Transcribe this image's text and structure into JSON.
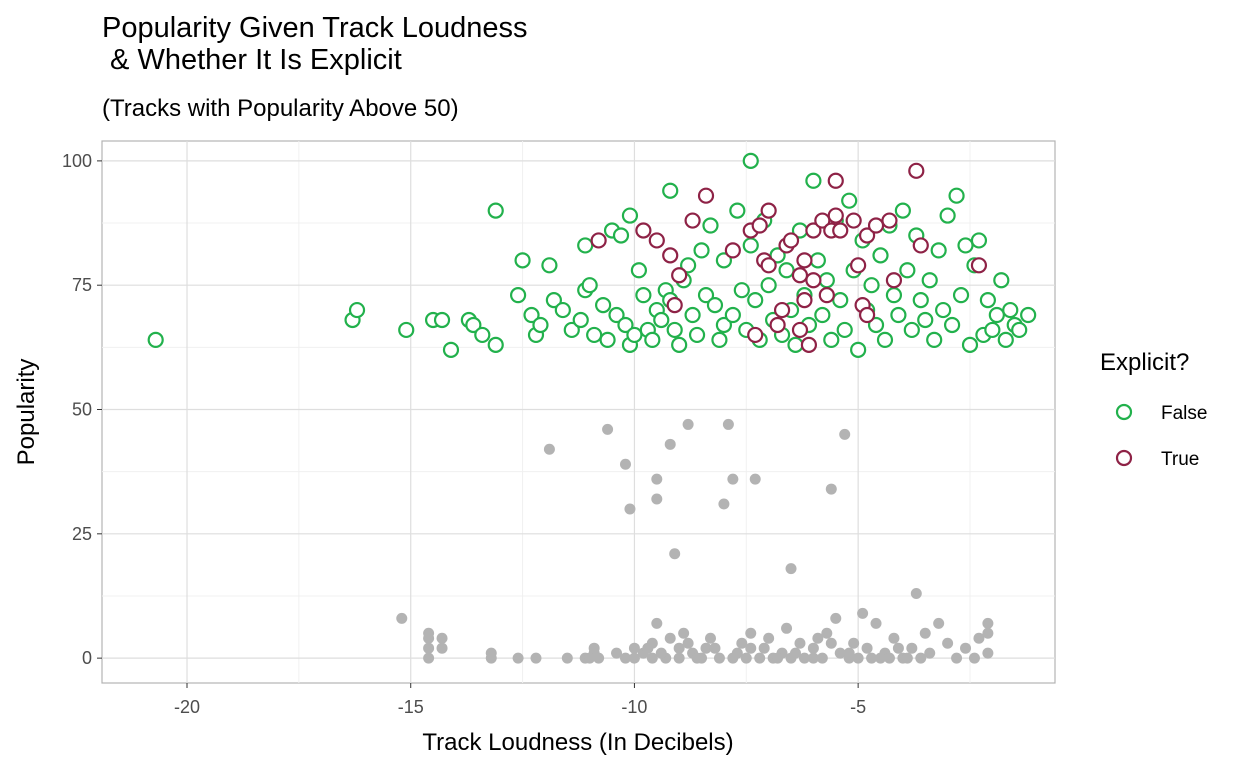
{
  "chart_data": {
    "type": "scatter",
    "title": "Popularity Given Track Loudness\n & Whether It Is Explicit",
    "subtitle": "(Tracks with Popularity Above 50)",
    "xlabel": "Track Loudness (In Decibels)",
    "ylabel": "Popularity",
    "xlim": [
      -21.9,
      -0.6
    ],
    "ylim": [
      -5,
      104
    ],
    "x_ticks": [
      -20,
      -15,
      -10,
      -5
    ],
    "y_ticks": [
      0,
      25,
      50,
      75,
      100
    ],
    "grid": true,
    "legend": {
      "title": "Explicit?",
      "position": "right",
      "entries": [
        {
          "label": "False",
          "color": "#22B14C"
        },
        {
          "label": "True",
          "color": "#8E2246"
        }
      ]
    },
    "series": [
      {
        "name": "False",
        "color": "#22B14C",
        "style": "hollow",
        "points": [
          [
            -20.7,
            64
          ],
          [
            -16.3,
            68
          ],
          [
            -16.2,
            70
          ],
          [
            -15.1,
            66
          ],
          [
            -14.5,
            68
          ],
          [
            -14.3,
            68
          ],
          [
            -14.1,
            62
          ],
          [
            -13.7,
            68
          ],
          [
            -13.6,
            67
          ],
          [
            -13.4,
            65
          ],
          [
            -13.1,
            63
          ],
          [
            -13.1,
            90
          ],
          [
            -12.6,
            73
          ],
          [
            -12.5,
            80
          ],
          [
            -12.3,
            69
          ],
          [
            -12.2,
            65
          ],
          [
            -12.1,
            67
          ],
          [
            -11.9,
            79
          ],
          [
            -11.8,
            72
          ],
          [
            -11.6,
            70
          ],
          [
            -11.4,
            66
          ],
          [
            -11.2,
            68
          ],
          [
            -11.1,
            74
          ],
          [
            -11.0,
            75
          ],
          [
            -11.1,
            83
          ],
          [
            -10.9,
            65
          ],
          [
            -10.7,
            71
          ],
          [
            -10.6,
            64
          ],
          [
            -10.5,
            86
          ],
          [
            -10.4,
            69
          ],
          [
            -10.3,
            85
          ],
          [
            -10.2,
            67
          ],
          [
            -10.1,
            63
          ],
          [
            -10.0,
            65
          ],
          [
            -10.1,
            89
          ],
          [
            -9.9,
            78
          ],
          [
            -9.8,
            73
          ],
          [
            -9.7,
            66
          ],
          [
            -9.6,
            64
          ],
          [
            -9.5,
            70
          ],
          [
            -9.4,
            68
          ],
          [
            -9.3,
            74
          ],
          [
            -9.2,
            72
          ],
          [
            -9.2,
            94
          ],
          [
            -9.1,
            66
          ],
          [
            -9.0,
            63
          ],
          [
            -8.9,
            76
          ],
          [
            -8.8,
            79
          ],
          [
            -8.7,
            69
          ],
          [
            -8.6,
            65
          ],
          [
            -8.5,
            82
          ],
          [
            -8.4,
            73
          ],
          [
            -8.3,
            87
          ],
          [
            -8.2,
            71
          ],
          [
            -8.1,
            64
          ],
          [
            -8.0,
            80
          ],
          [
            -8.0,
            67
          ],
          [
            -7.8,
            69
          ],
          [
            -7.7,
            90
          ],
          [
            -7.6,
            74
          ],
          [
            -7.5,
            66
          ],
          [
            -7.4,
            83
          ],
          [
            -7.4,
            100
          ],
          [
            -7.3,
            72
          ],
          [
            -7.2,
            64
          ],
          [
            -7.1,
            88
          ],
          [
            -7.0,
            75
          ],
          [
            -6.9,
            68
          ],
          [
            -6.8,
            81
          ],
          [
            -6.7,
            65
          ],
          [
            -6.6,
            78
          ],
          [
            -6.5,
            70
          ],
          [
            -6.4,
            63
          ],
          [
            -6.3,
            86
          ],
          [
            -6.2,
            73
          ],
          [
            -6.1,
            67
          ],
          [
            -6.0,
            96
          ],
          [
            -5.9,
            80
          ],
          [
            -5.8,
            69
          ],
          [
            -5.7,
            76
          ],
          [
            -5.6,
            64
          ],
          [
            -5.5,
            88
          ],
          [
            -5.4,
            72
          ],
          [
            -5.3,
            66
          ],
          [
            -5.2,
            92
          ],
          [
            -5.1,
            78
          ],
          [
            -5.0,
            62
          ],
          [
            -4.9,
            84
          ],
          [
            -4.8,
            70
          ],
          [
            -4.7,
            75
          ],
          [
            -4.6,
            67
          ],
          [
            -4.5,
            81
          ],
          [
            -4.4,
            64
          ],
          [
            -4.3,
            87
          ],
          [
            -4.2,
            73
          ],
          [
            -4.1,
            69
          ],
          [
            -4.0,
            90
          ],
          [
            -3.9,
            78
          ],
          [
            -3.8,
            66
          ],
          [
            -3.7,
            85
          ],
          [
            -3.6,
            72
          ],
          [
            -3.5,
            68
          ],
          [
            -3.4,
            76
          ],
          [
            -3.3,
            64
          ],
          [
            -3.2,
            82
          ],
          [
            -3.1,
            70
          ],
          [
            -3.0,
            89
          ],
          [
            -2.9,
            67
          ],
          [
            -2.8,
            93
          ],
          [
            -2.7,
            73
          ],
          [
            -2.6,
            83
          ],
          [
            -2.5,
            63
          ],
          [
            -2.4,
            79
          ],
          [
            -2.3,
            84
          ],
          [
            -2.2,
            65
          ],
          [
            -2.1,
            72
          ],
          [
            -2.0,
            66
          ],
          [
            -1.9,
            69
          ],
          [
            -1.8,
            76
          ],
          [
            -1.7,
            64
          ],
          [
            -1.6,
            70
          ],
          [
            -1.5,
            67
          ],
          [
            -1.2,
            69
          ],
          [
            -1.4,
            66
          ]
        ]
      },
      {
        "name": "True",
        "color": "#8E2246",
        "style": "hollow",
        "points": [
          [
            -10.8,
            84
          ],
          [
            -9.8,
            86
          ],
          [
            -9.5,
            84
          ],
          [
            -9.2,
            81
          ],
          [
            -9.0,
            77
          ],
          [
            -9.1,
            71
          ],
          [
            -8.7,
            88
          ],
          [
            -8.4,
            93
          ],
          [
            -7.8,
            82
          ],
          [
            -7.4,
            86
          ],
          [
            -7.3,
            65
          ],
          [
            -7.2,
            87
          ],
          [
            -7.1,
            80
          ],
          [
            -7.0,
            79
          ],
          [
            -7.0,
            90
          ],
          [
            -6.8,
            67
          ],
          [
            -6.7,
            70
          ],
          [
            -6.6,
            83
          ],
          [
            -6.5,
            84
          ],
          [
            -6.3,
            77
          ],
          [
            -6.3,
            66
          ],
          [
            -6.2,
            80
          ],
          [
            -6.1,
            63
          ],
          [
            -6.0,
            86
          ],
          [
            -5.8,
            88
          ],
          [
            -5.7,
            73
          ],
          [
            -5.6,
            86
          ],
          [
            -5.5,
            89
          ],
          [
            -5.5,
            96
          ],
          [
            -5.4,
            86
          ],
          [
            -5.1,
            88
          ],
          [
            -5.0,
            79
          ],
          [
            -4.9,
            71
          ],
          [
            -4.8,
            69
          ],
          [
            -4.8,
            85
          ],
          [
            -4.6,
            87
          ],
          [
            -4.3,
            88
          ],
          [
            -4.2,
            76
          ],
          [
            -3.7,
            98
          ],
          [
            -3.6,
            83
          ],
          [
            -2.3,
            79
          ],
          [
            -6.2,
            72
          ],
          [
            -6.0,
            76
          ]
        ]
      },
      {
        "name": "",
        "color": "#B3B3B3",
        "style": "filled",
        "points": [
          [
            -15.2,
            8
          ],
          [
            -14.6,
            0
          ],
          [
            -14.6,
            2
          ],
          [
            -14.6,
            4
          ],
          [
            -14.6,
            5
          ],
          [
            -14.3,
            2
          ],
          [
            -14.3,
            4
          ],
          [
            -13.2,
            0
          ],
          [
            -13.2,
            1
          ],
          [
            -12.6,
            0
          ],
          [
            -11.5,
            0
          ],
          [
            -11.9,
            42
          ],
          [
            -11.1,
            0
          ],
          [
            -10.9,
            1
          ],
          [
            -10.9,
            2
          ],
          [
            -10.8,
            0
          ],
          [
            -10.6,
            46
          ],
          [
            -10.4,
            1
          ],
          [
            -10.2,
            0
          ],
          [
            -10.2,
            39
          ],
          [
            -10.1,
            30
          ],
          [
            -10.0,
            0
          ],
          [
            -10.0,
            2
          ],
          [
            -9.8,
            1
          ],
          [
            -9.6,
            0
          ],
          [
            -9.6,
            3
          ],
          [
            -9.5,
            36
          ],
          [
            -9.5,
            32
          ],
          [
            -9.5,
            7
          ],
          [
            -9.3,
            0
          ],
          [
            -9.2,
            43
          ],
          [
            -9.2,
            4
          ],
          [
            -9.1,
            21
          ],
          [
            -9.0,
            0
          ],
          [
            -9.0,
            2
          ],
          [
            -8.9,
            5
          ],
          [
            -8.8,
            47
          ],
          [
            -8.8,
            3
          ],
          [
            -8.7,
            1
          ],
          [
            -8.5,
            0
          ],
          [
            -8.4,
            2
          ],
          [
            -8.3,
            4
          ],
          [
            -8.1,
            0
          ],
          [
            -8.0,
            31
          ],
          [
            -7.9,
            47
          ],
          [
            -7.8,
            36
          ],
          [
            -7.7,
            1
          ],
          [
            -7.6,
            3
          ],
          [
            -7.5,
            0
          ],
          [
            -7.4,
            5
          ],
          [
            -7.3,
            36
          ],
          [
            -7.2,
            0
          ],
          [
            -7.1,
            2
          ],
          [
            -7.0,
            4
          ],
          [
            -6.9,
            0
          ],
          [
            -6.7,
            1
          ],
          [
            -6.6,
            6
          ],
          [
            -6.5,
            18
          ],
          [
            -6.5,
            0
          ],
          [
            -6.3,
            3
          ],
          [
            -6.2,
            0
          ],
          [
            -6.0,
            2
          ],
          [
            -5.9,
            4
          ],
          [
            -5.8,
            0
          ],
          [
            -5.7,
            5
          ],
          [
            -5.6,
            34
          ],
          [
            -5.5,
            8
          ],
          [
            -5.4,
            1
          ],
          [
            -5.3,
            45
          ],
          [
            -5.2,
            0
          ],
          [
            -5.1,
            3
          ],
          [
            -5.0,
            0
          ],
          [
            -4.9,
            9
          ],
          [
            -4.8,
            2
          ],
          [
            -4.7,
            0
          ],
          [
            -4.6,
            7
          ],
          [
            -4.4,
            1
          ],
          [
            -4.3,
            0
          ],
          [
            -4.2,
            4
          ],
          [
            -4.0,
            0
          ],
          [
            -3.8,
            2
          ],
          [
            -3.7,
            13
          ],
          [
            -3.6,
            0
          ],
          [
            -3.5,
            5
          ],
          [
            -3.4,
            1
          ],
          [
            -3.2,
            7
          ],
          [
            -3.0,
            3
          ],
          [
            -2.8,
            0
          ],
          [
            -2.6,
            2
          ],
          [
            -2.4,
            0
          ],
          [
            -2.3,
            4
          ],
          [
            -2.1,
            5
          ],
          [
            -2.1,
            7
          ],
          [
            -2.1,
            1
          ],
          [
            -12.2,
            0
          ],
          [
            -11.0,
            0
          ],
          [
            -9.7,
            2
          ],
          [
            -9.4,
            1
          ],
          [
            -8.6,
            0
          ],
          [
            -8.2,
            2
          ],
          [
            -7.8,
            0
          ],
          [
            -7.4,
            2
          ],
          [
            -6.8,
            0
          ],
          [
            -6.4,
            1
          ],
          [
            -6.0,
            0
          ],
          [
            -5.6,
            3
          ],
          [
            -5.2,
            1
          ],
          [
            -4.5,
            0
          ],
          [
            -4.1,
            2
          ],
          [
            -3.9,
            0
          ]
        ]
      }
    ]
  }
}
